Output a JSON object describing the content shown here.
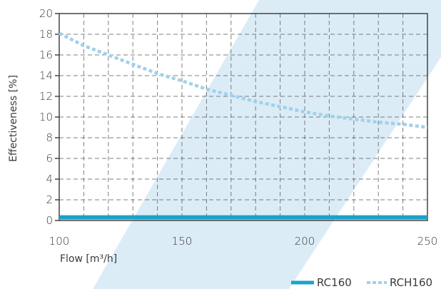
{
  "chart_data": {
    "type": "line",
    "title": "",
    "xlabel": "Flow [m³/h]",
    "ylabel": "Effectiveness [%]",
    "xlim": [
      100,
      250
    ],
    "ylim": [
      0,
      20
    ],
    "x_ticks": [
      100,
      150,
      200,
      250
    ],
    "y_ticks": [
      0,
      2,
      4,
      6,
      8,
      10,
      12,
      14,
      16,
      18,
      20
    ],
    "x_minor_step": 10,
    "grid": true,
    "legend_position": "bottom-right",
    "background_band_color": "#dcecf7",
    "series": [
      {
        "name": "RC160",
        "style": "solid",
        "color": "#1aa3c9",
        "x": [
          100,
          250
        ],
        "y": [
          0.3,
          0.3
        ]
      },
      {
        "name": "RCH160",
        "style": "dotted",
        "color": "#9fd2ea",
        "x": [
          100,
          110,
          120,
          130,
          140,
          150,
          160,
          170,
          180,
          190,
          200,
          210,
          220,
          230,
          240,
          250
        ],
        "y": [
          18.1,
          16.9,
          16.0,
          15.1,
          14.2,
          13.5,
          12.7,
          12.1,
          11.5,
          11.0,
          10.5,
          10.1,
          9.8,
          9.5,
          9.3,
          9.0
        ]
      }
    ]
  }
}
